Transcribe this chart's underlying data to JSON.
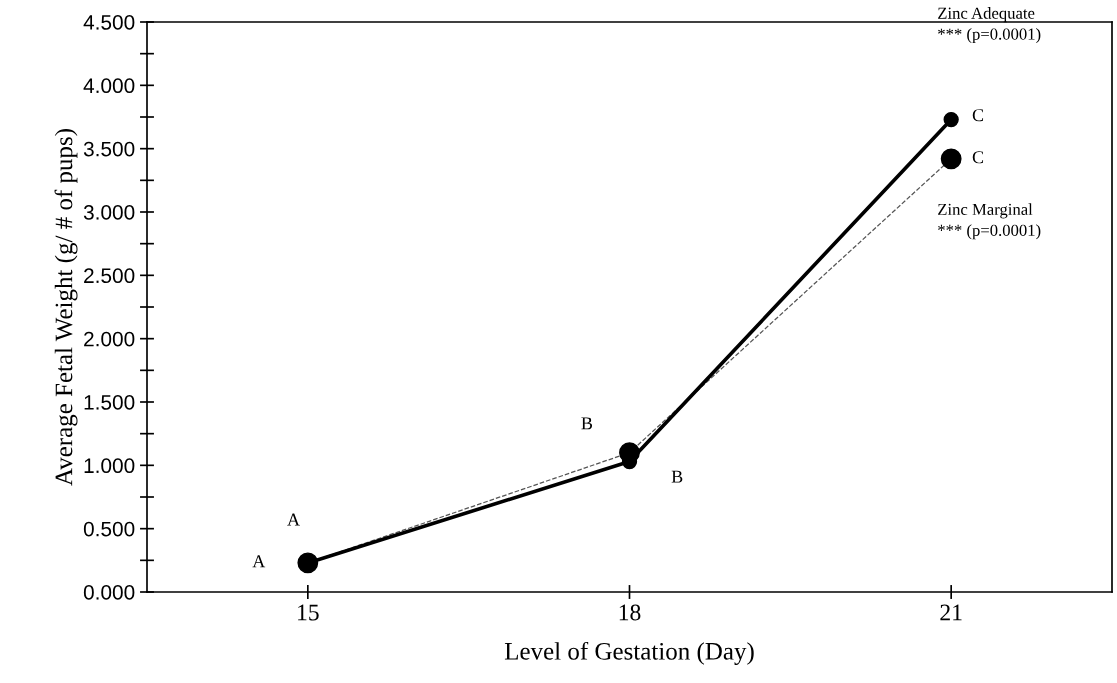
{
  "chart_data": {
    "type": "line",
    "xlabel": "Level of Gestation (Day)",
    "ylabel": "Average Fetal Weight (g/ # of pups)",
    "x": [
      15,
      18,
      21
    ],
    "series": [
      {
        "name": "Zinc Adequate",
        "color": "#000000",
        "values": [
          0.23,
          1.03,
          3.73
        ],
        "line_style": "solid"
      },
      {
        "name": "Zinc Marginal",
        "color": "#555555",
        "values": [
          0.23,
          1.1,
          3.42
        ],
        "line_style": "dashed"
      }
    ],
    "marker": "circle",
    "xlim": [
      13.5,
      22.5
    ],
    "xticks": [
      15,
      18,
      21
    ],
    "ylim": [
      0,
      4.5
    ],
    "yticks": [
      {
        "value": 0,
        "label": "0.000"
      },
      {
        "value": 0.25,
        "label": null
      },
      {
        "value": 0.5,
        "label": "0.500"
      },
      {
        "value": 0.75,
        "label": null
      },
      {
        "value": 1,
        "label": "1.000"
      },
      {
        "value": 1.25,
        "label": null
      },
      {
        "value": 1.5,
        "label": "1.500"
      },
      {
        "value": 1.75,
        "label": null
      },
      {
        "value": 2,
        "label": "2.000"
      },
      {
        "value": 2.25,
        "label": null
      },
      {
        "value": 2.5,
        "label": "2.500"
      },
      {
        "value": 2.75,
        "label": null
      },
      {
        "value": 3,
        "label": "3.000"
      },
      {
        "value": 3.25,
        "label": null
      },
      {
        "value": 3.5,
        "label": "3.500"
      },
      {
        "value": 3.75,
        "label": null
      },
      {
        "value": 4,
        "label": "4.000"
      },
      {
        "value": 4.25,
        "label": null
      },
      {
        "value": 4.5,
        "label": "4.500"
      }
    ],
    "grid": false,
    "legend": false,
    "annotations": [
      {
        "text": "A",
        "x": 15,
        "y": 0.23
      },
      {
        "text": "A",
        "x": 15,
        "y": 0.23
      },
      {
        "text": "B",
        "x": 18,
        "y": 1.03
      },
      {
        "text": "B",
        "x": 18,
        "y": 1.1
      },
      {
        "text": "C",
        "x": 21,
        "y": 3.73
      },
      {
        "text": "C",
        "x": 21,
        "y": 3.42
      },
      "*** (p=0.0001)",
      "*** (p=0.0001)"
    ]
  }
}
